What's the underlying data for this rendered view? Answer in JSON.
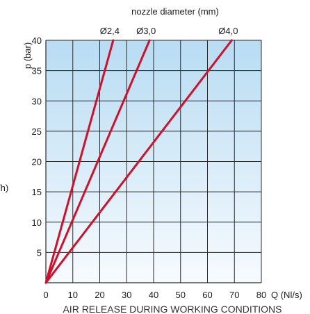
{
  "chart_data": {
    "type": "line",
    "title": "AIR RELEASE DURING WORKING CONDITIONS",
    "top_label": "nozzle diameter (mm)",
    "xlabel": "Q (Nl/s)",
    "ylabel": "p (bar)",
    "left_fragment": "/h)",
    "xlim": [
      0,
      80
    ],
    "ylim": [
      0,
      40
    ],
    "x_ticks": [
      0,
      10,
      20,
      30,
      40,
      50,
      60,
      70,
      80
    ],
    "y_ticks": [
      5,
      10,
      15,
      20,
      25,
      30,
      35,
      40
    ],
    "grid": true,
    "series": [
      {
        "name": "Ø2,4",
        "x": [
          0,
          25
        ],
        "y": [
          0,
          40
        ]
      },
      {
        "name": "Ø3,0",
        "x": [
          0,
          38.5
        ],
        "y": [
          0,
          40
        ]
      },
      {
        "name": "Ø4,0",
        "x": [
          0,
          69
        ],
        "y": [
          0,
          40
        ]
      }
    ],
    "colors": {
      "series": "#d0102a",
      "plot_top": "#b8dcf3",
      "plot_bottom": "#f7fbfe",
      "grid": "#2a2a2a"
    }
  }
}
